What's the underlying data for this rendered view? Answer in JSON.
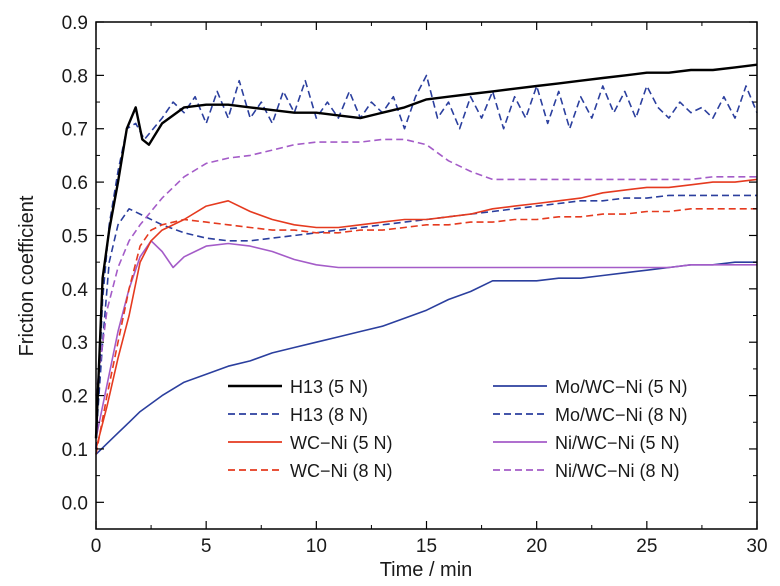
{
  "chart_data": {
    "type": "line",
    "title": "",
    "xlabel": "Time / min",
    "ylabel": "Friction coefficient",
    "xlim": [
      0,
      30
    ],
    "ylim": [
      -0.05,
      0.9
    ],
    "xticks": [
      0,
      5,
      10,
      15,
      20,
      25,
      30
    ],
    "yticks": [
      0.0,
      0.1,
      0.2,
      0.3,
      0.4,
      0.5,
      0.6,
      0.7,
      0.8,
      0.9
    ],
    "xtick_labels": [
      "0",
      "5",
      "10",
      "15",
      "20",
      "25",
      "30"
    ],
    "ytick_labels": [
      "0.0",
      "0.1",
      "0.2",
      "0.3",
      "0.4",
      "0.5",
      "0.6",
      "0.7",
      "0.8",
      "0.9"
    ],
    "grid": false,
    "legend_position": "bottom-right",
    "series": [
      {
        "name": "H13 (5 N)",
        "color": "#000000",
        "dash": "solid",
        "x": [
          0,
          0.3,
          0.6,
          1.0,
          1.4,
          1.8,
          2.1,
          2.4,
          3,
          4,
          5,
          6,
          7,
          8,
          9,
          10,
          11,
          12,
          13,
          14,
          15,
          16,
          17,
          18,
          19,
          20,
          21,
          22,
          23,
          24,
          25,
          26,
          27,
          28,
          29,
          30
        ],
        "y": [
          0.12,
          0.42,
          0.51,
          0.6,
          0.7,
          0.74,
          0.68,
          0.67,
          0.71,
          0.74,
          0.745,
          0.745,
          0.74,
          0.735,
          0.73,
          0.73,
          0.725,
          0.72,
          0.73,
          0.74,
          0.755,
          0.76,
          0.765,
          0.77,
          0.775,
          0.78,
          0.785,
          0.79,
          0.795,
          0.8,
          0.805,
          0.805,
          0.81,
          0.81,
          0.815,
          0.82
        ]
      },
      {
        "name": "H13 (8 N)",
        "color": "#2b3f9e",
        "dash": "dashed",
        "x": [
          0,
          0.3,
          0.6,
          1.0,
          1.4,
          1.8,
          2.2,
          2.6,
          3.0,
          3.5,
          4.0,
          4.5,
          5.0,
          5.5,
          6.0,
          6.5,
          7.0,
          7.5,
          8.0,
          8.5,
          9.0,
          9.5,
          10.0,
          10.5,
          11.0,
          11.5,
          12.0,
          12.5,
          13.0,
          13.5,
          14.0,
          14.5,
          15.0,
          15.5,
          16.0,
          16.5,
          17.0,
          17.5,
          18.0,
          18.5,
          19.0,
          19.5,
          20.0,
          20.5,
          21.0,
          21.5,
          22.0,
          22.5,
          23.0,
          23.5,
          24.0,
          24.5,
          25.0,
          25.5,
          26.0,
          26.5,
          27.0,
          27.5,
          28.0,
          28.5,
          29.0,
          29.5,
          30.0
        ],
        "y": [
          0.1,
          0.38,
          0.52,
          0.62,
          0.7,
          0.71,
          0.68,
          0.7,
          0.72,
          0.75,
          0.73,
          0.76,
          0.71,
          0.77,
          0.72,
          0.79,
          0.72,
          0.75,
          0.71,
          0.77,
          0.73,
          0.79,
          0.72,
          0.75,
          0.72,
          0.77,
          0.72,
          0.75,
          0.73,
          0.76,
          0.7,
          0.76,
          0.8,
          0.72,
          0.75,
          0.7,
          0.76,
          0.72,
          0.77,
          0.7,
          0.76,
          0.72,
          0.78,
          0.71,
          0.77,
          0.7,
          0.76,
          0.72,
          0.78,
          0.73,
          0.77,
          0.72,
          0.78,
          0.74,
          0.72,
          0.75,
          0.73,
          0.74,
          0.72,
          0.76,
          0.72,
          0.78,
          0.73
        ]
      },
      {
        "name": "WC−Ni (5 N)",
        "color": "#e53a1f",
        "dash": "solid",
        "x": [
          0,
          0.5,
          1,
          1.5,
          2,
          2.5,
          3,
          4,
          5,
          6,
          7,
          8,
          9,
          10,
          11,
          12,
          13,
          14,
          15,
          16,
          17,
          18,
          19,
          20,
          21,
          22,
          23,
          24,
          25,
          26,
          27,
          28,
          29,
          30
        ],
        "y": [
          0.1,
          0.18,
          0.27,
          0.35,
          0.45,
          0.49,
          0.51,
          0.53,
          0.555,
          0.565,
          0.545,
          0.53,
          0.52,
          0.515,
          0.515,
          0.52,
          0.525,
          0.53,
          0.53,
          0.535,
          0.54,
          0.55,
          0.555,
          0.56,
          0.565,
          0.57,
          0.58,
          0.585,
          0.59,
          0.59,
          0.595,
          0.6,
          0.6,
          0.605
        ]
      },
      {
        "name": "WC−Ni (8 N)",
        "color": "#e53a1f",
        "dash": "dashed",
        "x": [
          0,
          0.5,
          1,
          1.5,
          2,
          2.5,
          3,
          4,
          5,
          6,
          7,
          8,
          9,
          10,
          11,
          12,
          13,
          14,
          15,
          16,
          17,
          18,
          19,
          20,
          21,
          22,
          23,
          24,
          25,
          26,
          27,
          28,
          29,
          30
        ],
        "y": [
          0.09,
          0.2,
          0.3,
          0.4,
          0.48,
          0.51,
          0.52,
          0.53,
          0.525,
          0.52,
          0.515,
          0.51,
          0.51,
          0.505,
          0.505,
          0.51,
          0.51,
          0.515,
          0.52,
          0.52,
          0.525,
          0.525,
          0.53,
          0.53,
          0.535,
          0.535,
          0.54,
          0.54,
          0.545,
          0.545,
          0.55,
          0.55,
          0.55,
          0.55
        ]
      },
      {
        "name": "Mo/WC−Ni (5 N)",
        "color": "#2b3f9e",
        "dash": "solid",
        "x": [
          0,
          0.5,
          1,
          1.5,
          2,
          3,
          4,
          5,
          6,
          7,
          8,
          9,
          10,
          11,
          12,
          13,
          14,
          15,
          16,
          17,
          18,
          19,
          20,
          21,
          22,
          23,
          24,
          25,
          26,
          27,
          28,
          29,
          30
        ],
        "y": [
          0.09,
          0.11,
          0.13,
          0.15,
          0.17,
          0.2,
          0.225,
          0.24,
          0.255,
          0.265,
          0.28,
          0.29,
          0.3,
          0.31,
          0.32,
          0.33,
          0.345,
          0.36,
          0.38,
          0.395,
          0.415,
          0.415,
          0.415,
          0.42,
          0.42,
          0.425,
          0.43,
          0.435,
          0.44,
          0.445,
          0.445,
          0.45,
          0.45
        ]
      },
      {
        "name": "Mo/WC−Ni (8 N)",
        "color": "#2b3f9e",
        "dash": "dashed",
        "x": [
          0,
          0.3,
          0.6,
          1.0,
          1.5,
          2,
          3,
          4,
          5,
          6,
          7,
          8,
          9,
          10,
          11,
          12,
          13,
          14,
          15,
          16,
          17,
          18,
          19,
          20,
          21,
          22,
          23,
          24,
          25,
          26,
          27,
          28,
          29,
          30
        ],
        "y": [
          0.12,
          0.3,
          0.45,
          0.52,
          0.55,
          0.54,
          0.52,
          0.505,
          0.495,
          0.49,
          0.49,
          0.495,
          0.5,
          0.505,
          0.51,
          0.515,
          0.52,
          0.525,
          0.53,
          0.535,
          0.54,
          0.545,
          0.55,
          0.555,
          0.56,
          0.565,
          0.565,
          0.57,
          0.57,
          0.575,
          0.575,
          0.575,
          0.575,
          0.575
        ]
      },
      {
        "name": "Ni/WC−Ni (5 N)",
        "color": "#a45cc8",
        "dash": "solid",
        "x": [
          0,
          0.5,
          1,
          1.5,
          2,
          2.5,
          3,
          3.5,
          4,
          5,
          6,
          7,
          8,
          9,
          10,
          11,
          12,
          13,
          14,
          15,
          16,
          17,
          18,
          19,
          20,
          21,
          22,
          23,
          24,
          25,
          26,
          27,
          28,
          29,
          30
        ],
        "y": [
          0.12,
          0.22,
          0.32,
          0.4,
          0.46,
          0.49,
          0.47,
          0.44,
          0.46,
          0.48,
          0.485,
          0.48,
          0.47,
          0.455,
          0.445,
          0.44,
          0.44,
          0.44,
          0.44,
          0.44,
          0.44,
          0.44,
          0.44,
          0.44,
          0.44,
          0.44,
          0.44,
          0.44,
          0.44,
          0.44,
          0.44,
          0.445,
          0.445,
          0.445,
          0.445
        ]
      },
      {
        "name": "Ni/WC−Ni (8 N)",
        "color": "#a45cc8",
        "dash": "dashed",
        "x": [
          0,
          0.5,
          1,
          1.5,
          2,
          3,
          4,
          5,
          6,
          7,
          8,
          9,
          10,
          11,
          12,
          13,
          14,
          15,
          16,
          17,
          18,
          19,
          20,
          21,
          22,
          23,
          24,
          25,
          26,
          27,
          28,
          29,
          30
        ],
        "y": [
          0.2,
          0.36,
          0.44,
          0.49,
          0.52,
          0.57,
          0.61,
          0.635,
          0.645,
          0.65,
          0.66,
          0.67,
          0.675,
          0.675,
          0.675,
          0.68,
          0.68,
          0.67,
          0.64,
          0.62,
          0.605,
          0.605,
          0.605,
          0.605,
          0.605,
          0.605,
          0.605,
          0.605,
          0.605,
          0.605,
          0.61,
          0.61,
          0.61
        ]
      }
    ]
  }
}
